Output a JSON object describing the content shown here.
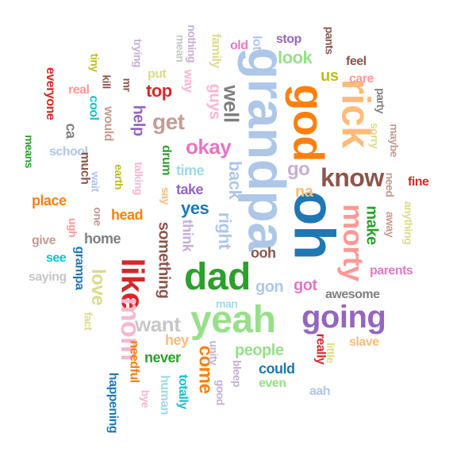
{
  "words": [
    {
      "text": "oh",
      "color": "#1f77b4"
    },
    {
      "text": "grandpa",
      "color": "#aec7e8"
    },
    {
      "text": "god",
      "color": "#ff7f0e"
    },
    {
      "text": "rick",
      "color": "#ffbb78"
    },
    {
      "text": "yeah",
      "color": "#98df8a"
    },
    {
      "text": "dad",
      "color": "#2ca02c"
    },
    {
      "text": "morty",
      "color": "#ff9896"
    },
    {
      "text": "like",
      "color": "#d62728"
    },
    {
      "text": "going",
      "color": "#9467bd"
    },
    {
      "text": "know",
      "color": "#8c564b"
    },
    {
      "text": "mom",
      "color": "#f7b6d2"
    },
    {
      "text": "okay",
      "color": "#e377c2"
    },
    {
      "text": "back",
      "color": "#aec7e8"
    },
    {
      "text": "right",
      "color": "#aec7e8"
    },
    {
      "text": "get",
      "color": "#c49c94"
    },
    {
      "text": "well",
      "color": "#7f7f7f"
    },
    {
      "text": "want",
      "color": "#c7c7c7"
    },
    {
      "text": "love",
      "color": "#dbdb8d"
    },
    {
      "text": "come",
      "color": "#ff7f0e"
    },
    {
      "text": "people",
      "color": "#98df8a"
    },
    {
      "text": "something",
      "color": "#8c564b"
    },
    {
      "text": "top",
      "color": "#d62728"
    },
    {
      "text": "go",
      "color": "#c5b0d5"
    },
    {
      "text": "yes",
      "color": "#1f77b4"
    },
    {
      "text": "look",
      "color": "#98df8a"
    },
    {
      "text": "make",
      "color": "#2ca02c"
    },
    {
      "text": "help",
      "color": "#9467bd"
    },
    {
      "text": "na",
      "color": "#ffbb78"
    },
    {
      "text": "gon",
      "color": "#aec7e8"
    },
    {
      "text": "got",
      "color": "#e377c2"
    },
    {
      "text": "ooh",
      "color": "#8c564b"
    },
    {
      "text": "us",
      "color": "#bcbd22"
    },
    {
      "text": "guys",
      "color": "#f7b6d2"
    },
    {
      "text": "think",
      "color": "#c5b0d5"
    },
    {
      "text": "could",
      "color": "#1f77b4"
    },
    {
      "text": "awesome",
      "color": "#7f7f7f"
    },
    {
      "text": "really",
      "color": "#d62728"
    },
    {
      "text": "head",
      "color": "#ff7f0e"
    },
    {
      "text": "take",
      "color": "#9467bd"
    },
    {
      "text": "time",
      "color": "#9edae5"
    },
    {
      "text": "never",
      "color": "#2ca02c"
    },
    {
      "text": "hey",
      "color": "#ffbb78"
    },
    {
      "text": "home",
      "color": "#7f7f7f"
    },
    {
      "text": "place",
      "color": "#ff7f0e"
    },
    {
      "text": "school",
      "color": "#aec7e8"
    },
    {
      "text": "much",
      "color": "#8c564b"
    },
    {
      "text": "stop",
      "color": "#9467bd"
    },
    {
      "text": "feel",
      "color": "#8c564b"
    },
    {
      "text": "care",
      "color": "#ff9896"
    },
    {
      "text": "fine",
      "color": "#d62728"
    },
    {
      "text": "parents",
      "color": "#e377c2"
    },
    {
      "text": "slave",
      "color": "#ffbb78"
    },
    {
      "text": "even",
      "color": "#98df8a"
    },
    {
      "text": "aah",
      "color": "#aec7e8"
    },
    {
      "text": "man",
      "color": "#9edae5"
    },
    {
      "text": "see",
      "color": "#17becf"
    },
    {
      "text": "saying",
      "color": "#c7c7c7"
    },
    {
      "text": "give",
      "color": "#c49c94"
    },
    {
      "text": "grampa",
      "color": "#1f77b4"
    },
    {
      "text": "fact",
      "color": "#dbdb8d"
    },
    {
      "text": "happening",
      "color": "#1f77b4"
    },
    {
      "text": "needful",
      "color": "#ff7f0e"
    },
    {
      "text": "bye",
      "color": "#f7b6d2"
    },
    {
      "text": "human",
      "color": "#9edae5"
    },
    {
      "text": "totally",
      "color": "#17becf"
    },
    {
      "text": "unity",
      "color": "#c5b0d5"
    },
    {
      "text": "good",
      "color": "#c5b0d5"
    },
    {
      "text": "bleep",
      "color": "#c5b0d5"
    },
    {
      "text": "little",
      "color": "#dbdb8d"
    },
    {
      "text": "everyone",
      "color": "#d62728"
    },
    {
      "text": "means",
      "color": "#2ca02c"
    },
    {
      "text": "tiny",
      "color": "#bcbd22"
    },
    {
      "text": "kill",
      "color": "#8c564b"
    },
    {
      "text": "real",
      "color": "#ff9896"
    },
    {
      "text": "cool",
      "color": "#17becf"
    },
    {
      "text": "would",
      "color": "#c49c94"
    },
    {
      "text": "mr",
      "color": "#8c564b"
    },
    {
      "text": "ca",
      "color": "#7f7f7f"
    },
    {
      "text": "trying",
      "color": "#c5b0d5"
    },
    {
      "text": "mean",
      "color": "#c7c7c7"
    },
    {
      "text": "nothing",
      "color": "#c5b0d5"
    },
    {
      "text": "family",
      "color": "#dbdb8d"
    },
    {
      "text": "old",
      "color": "#e377c2"
    },
    {
      "text": "lot",
      "color": "#aec7e8"
    },
    {
      "text": "pants",
      "color": "#8c564b"
    },
    {
      "text": "put",
      "color": "#dbdb8d"
    },
    {
      "text": "way",
      "color": "#f7b6d2"
    },
    {
      "text": "party",
      "color": "#7f7f7f"
    },
    {
      "text": "sorry",
      "color": "#dbdb8d"
    },
    {
      "text": "maybe",
      "color": "#c49c94"
    },
    {
      "text": "need",
      "color": "#c49c94"
    },
    {
      "text": "away",
      "color": "#c49c94"
    },
    {
      "text": "anything",
      "color": "#dbdb8d"
    },
    {
      "text": "drum",
      "color": "#2ca02c"
    },
    {
      "text": "say",
      "color": "#ffbb78"
    },
    {
      "text": "talking",
      "color": "#f7b6d2"
    },
    {
      "text": "earth",
      "color": "#bcbd22"
    },
    {
      "text": "wait",
      "color": "#aec7e8"
    },
    {
      "text": "one",
      "color": "#c49c94"
    },
    {
      "text": "ugh",
      "color": "#ff9896"
    }
  ]
}
